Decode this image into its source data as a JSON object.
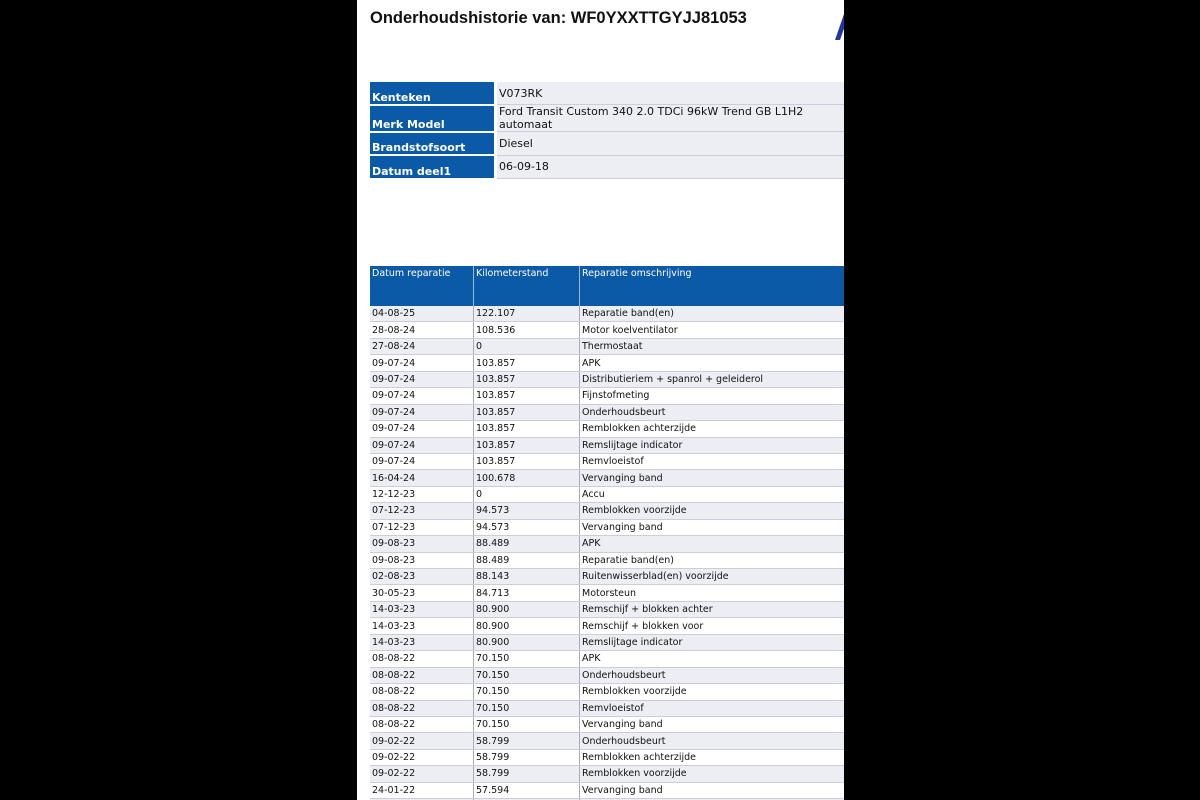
{
  "title": "Onderhoudshistorie van: WF0YXXTTGYJJ81053",
  "vehicle": [
    {
      "label": "Kenteken",
      "value": "V073RK"
    },
    {
      "label": "Merk Model",
      "value": "Ford Transit Custom 340 2.0 TDCi 96kW Trend GB L1H2 automaat"
    },
    {
      "label": "Brandstofsoort",
      "value": "Diesel"
    },
    {
      "label": "Datum deel1",
      "value": "06-09-18"
    }
  ],
  "history": {
    "columns": [
      "Datum reparatie",
      "Kilometerstand",
      "Reparatie omschrijving"
    ],
    "rows": [
      [
        "04-08-25",
        "122.107",
        "Reparatie band(en)"
      ],
      [
        "28-08-24",
        "108.536",
        "Motor koelventilator"
      ],
      [
        "27-08-24",
        "0",
        "Thermostaat"
      ],
      [
        "09-07-24",
        "103.857",
        "APK"
      ],
      [
        "09-07-24",
        "103.857",
        "Distributieriem + spanrol + geleiderol"
      ],
      [
        "09-07-24",
        "103.857",
        "Fijnstofmeting"
      ],
      [
        "09-07-24",
        "103.857",
        "Onderhoudsbeurt"
      ],
      [
        "09-07-24",
        "103.857",
        "Remblokken achterzijde"
      ],
      [
        "09-07-24",
        "103.857",
        "Remslijtage indicator"
      ],
      [
        "09-07-24",
        "103.857",
        "Remvloeistof"
      ],
      [
        "16-04-24",
        "100.678",
        "Vervanging band"
      ],
      [
        "12-12-23",
        "0",
        "Accu"
      ],
      [
        "07-12-23",
        "94.573",
        "Remblokken voorzijde"
      ],
      [
        "07-12-23",
        "94.573",
        "Vervanging band"
      ],
      [
        "09-08-23",
        "88.489",
        "APK"
      ],
      [
        "09-08-23",
        "88.489",
        "Reparatie band(en)"
      ],
      [
        "02-08-23",
        "88.143",
        "Ruitenwisserblad(en) voorzijde"
      ],
      [
        "30-05-23",
        "84.713",
        "Motorsteun"
      ],
      [
        "14-03-23",
        "80.900",
        "Remschijf + blokken achter"
      ],
      [
        "14-03-23",
        "80.900",
        "Remschijf + blokken voor"
      ],
      [
        "14-03-23",
        "80.900",
        "Remslijtage indicator"
      ],
      [
        "08-08-22",
        "70.150",
        "APK"
      ],
      [
        "08-08-22",
        "70.150",
        "Onderhoudsbeurt"
      ],
      [
        "08-08-22",
        "70.150",
        "Remblokken voorzijde"
      ],
      [
        "08-08-22",
        "70.150",
        "Remvloeistof"
      ],
      [
        "08-08-22",
        "70.150",
        "Vervanging band"
      ],
      [
        "09-02-22",
        "58.799",
        "Onderhoudsbeurt"
      ],
      [
        "09-02-22",
        "58.799",
        "Remblokken achterzijde"
      ],
      [
        "09-02-22",
        "58.799",
        "Remblokken voorzijde"
      ],
      [
        "24-01-22",
        "57.594",
        "Vervanging band"
      ],
      [
        "",
        "",
        ""
      ]
    ]
  },
  "colors": {
    "header_blue": "#0b5aa8",
    "row_alt": "#eceef3",
    "background": "#000000"
  }
}
